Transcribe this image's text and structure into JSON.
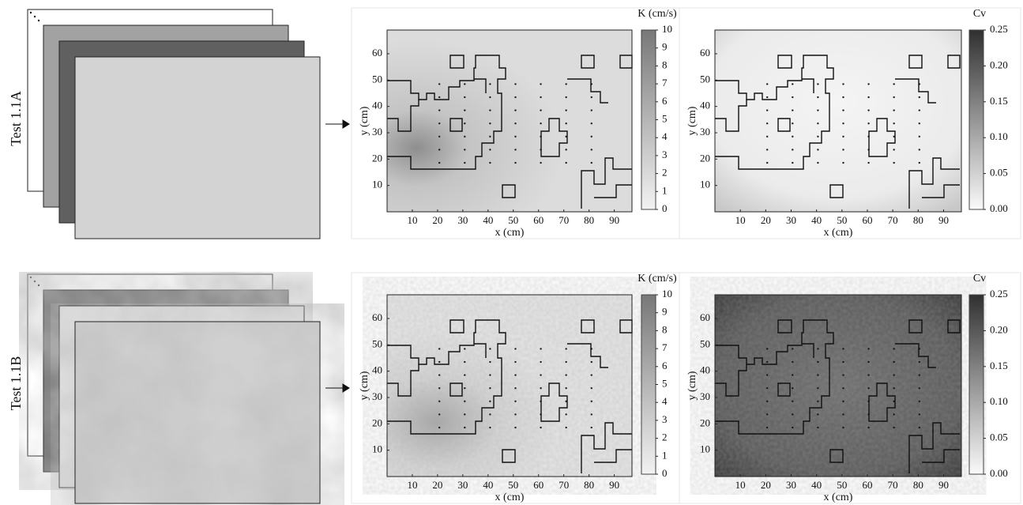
{
  "rows": [
    {
      "label": "Test 1.1A"
    },
    {
      "label": "Test 1.1B"
    }
  ],
  "chart_data": [
    {
      "type": "heatmap",
      "xlabel": "x (cm)",
      "ylabel": "y (cm)",
      "xlim": [
        0,
        97
      ],
      "ylim": [
        0,
        69
      ],
      "xticks": [
        10,
        20,
        30,
        40,
        50,
        60,
        70,
        80,
        90
      ],
      "yticks": [
        10,
        20,
        30,
        40,
        50,
        60
      ],
      "colorbar": {
        "label": "K (cm/s)",
        "lim": [
          0,
          10
        ],
        "ticks": [
          0,
          1,
          2,
          3,
          4,
          5,
          6,
          7,
          8,
          9,
          10
        ]
      }
    },
    {
      "type": "heatmap",
      "xlabel": "x (cm)",
      "ylabel": "y (cm)",
      "xlim": [
        0,
        97
      ],
      "ylim": [
        0,
        69
      ],
      "xticks": [
        10,
        20,
        30,
        40,
        50,
        60,
        70,
        80,
        90
      ],
      "yticks": [
        10,
        20,
        30,
        40,
        50,
        60
      ],
      "colorbar": {
        "label": "Cv",
        "lim": [
          0,
          0.25
        ],
        "ticks": [
          {
            "value": 0,
            "label": "0.00"
          },
          {
            "value": 0.05,
            "label": "0.05"
          },
          {
            "value": 0.1,
            "label": "0.10"
          },
          {
            "value": 0.15,
            "label": "0.15"
          },
          {
            "value": 0.2,
            "label": "0.20"
          },
          {
            "value": 0.25,
            "label": "0.25"
          }
        ]
      }
    },
    {
      "type": "heatmap",
      "xlabel": "x (cm)",
      "ylabel": "y (cm)",
      "xlim": [
        0,
        97
      ],
      "ylim": [
        0,
        69
      ],
      "xticks": [
        10,
        20,
        30,
        40,
        50,
        60,
        70,
        80,
        90
      ],
      "yticks": [
        10,
        20,
        30,
        40,
        50,
        60
      ],
      "colorbar": {
        "label": "K (cm/s)",
        "lim": [
          0,
          10
        ],
        "ticks": [
          0,
          1,
          2,
          3,
          4,
          5,
          6,
          7,
          8,
          9,
          10
        ]
      }
    },
    {
      "type": "heatmap",
      "xlabel": "x (cm)",
      "ylabel": "y (cm)",
      "xlim": [
        0,
        97
      ],
      "ylim": [
        0,
        69
      ],
      "xticks": [
        10,
        20,
        30,
        40,
        50,
        60,
        70,
        80,
        90
      ],
      "yticks": [
        10,
        20,
        30,
        40,
        50,
        60
      ],
      "colorbar": {
        "label": "Cv",
        "lim": [
          0,
          0.25
        ],
        "ticks": [
          {
            "value": 0,
            "label": "0.00"
          },
          {
            "value": 0.05,
            "label": "0.05"
          },
          {
            "value": 0.1,
            "label": "0.10"
          },
          {
            "value": 0.15,
            "label": "0.15"
          },
          {
            "value": 0.2,
            "label": "0.20"
          },
          {
            "value": 0.25,
            "label": "0.25"
          }
        ]
      }
    }
  ]
}
